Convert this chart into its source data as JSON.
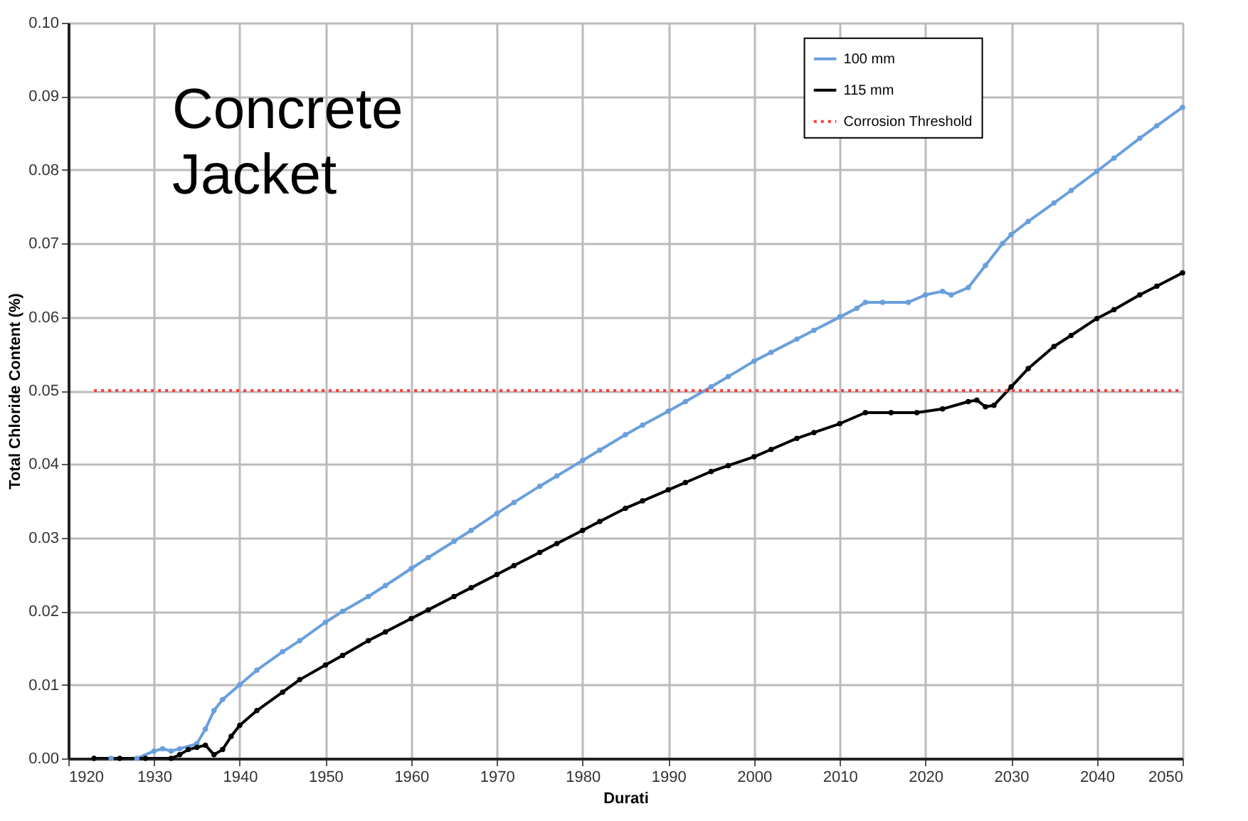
{
  "chart_data": {
    "type": "line",
    "xlabel": "Durati",
    "ylabel": "Total Chloride Content (%)",
    "annotations": [
      "Concrete Jacket"
    ],
    "xlim": [
      1920,
      2050
    ],
    "xticks": [
      1920,
      1930,
      1940,
      1950,
      1960,
      1970,
      1980,
      1990,
      2000,
      2010,
      2020,
      2030,
      2040,
      2050
    ],
    "ylim": [
      0,
      0.1
    ],
    "yticks": [
      {
        "value": 0,
        "label": "0.00"
      },
      {
        "value": 0.01,
        "label": "0.01"
      },
      {
        "value": 0.02,
        "label": "0.02"
      },
      {
        "value": 0.03,
        "label": "0.03"
      },
      {
        "value": 0.04,
        "label": "0.04"
      },
      {
        "value": 0.05,
        "label": "0.05"
      },
      {
        "value": 0.06,
        "label": "0.06"
      },
      {
        "value": 0.07,
        "label": "0.07"
      },
      {
        "value": 0.08,
        "label": "0.08"
      },
      {
        "value": 0.09,
        "label": "0.09"
      },
      {
        "value": 0.1,
        "label": "0.10"
      }
    ],
    "grid": true,
    "legend": "top right",
    "marker": "circle",
    "series": [
      {
        "name": "100 mm",
        "color": "#6a9fdc",
        "x": [
          1923,
          1925,
          1928,
          1930,
          1931,
          1932,
          1933,
          1935,
          1936,
          1937,
          1938,
          1940,
          1942,
          1945,
          1947,
          1950,
          1952,
          1955,
          1957,
          1960,
          1962,
          1965,
          1967,
          1970,
          1972,
          1975,
          1977,
          1980,
          1982,
          1985,
          1987,
          1990,
          1992,
          1995,
          1997,
          2000,
          2002,
          2005,
          2007,
          2010,
          2012,
          2013,
          2015,
          2018,
          2020,
          2022,
          2023,
          2025,
          2027,
          2029,
          2030,
          2032,
          2035,
          2037,
          2040,
          2042,
          2045,
          2047,
          2050
        ],
        "values": [
          0,
          0,
          0,
          0.001,
          0.0013,
          0.001,
          0.0013,
          0.002,
          0.004,
          0.0065,
          0.008,
          0.01,
          0.012,
          0.0145,
          0.016,
          0.0185,
          0.02,
          0.022,
          0.0235,
          0.0258,
          0.0273,
          0.0295,
          0.031,
          0.0333,
          0.0348,
          0.037,
          0.0384,
          0.0405,
          0.0419,
          0.044,
          0.0453,
          0.0472,
          0.0485,
          0.0505,
          0.0519,
          0.054,
          0.0552,
          0.057,
          0.0582,
          0.06,
          0.0612,
          0.062,
          0.062,
          0.062,
          0.063,
          0.0635,
          0.063,
          0.064,
          0.067,
          0.07,
          0.0712,
          0.073,
          0.0755,
          0.0772,
          0.0798,
          0.0816,
          0.0843,
          0.086,
          0.0885
        ]
      },
      {
        "name": "115 mm",
        "color": "#000000",
        "x": [
          1923,
          1926,
          1929,
          1932,
          1933,
          1934,
          1935,
          1936,
          1937,
          1938,
          1939,
          1940,
          1942,
          1945,
          1947,
          1950,
          1952,
          1955,
          1957,
          1960,
          1962,
          1965,
          1967,
          1970,
          1972,
          1975,
          1977,
          1980,
          1982,
          1985,
          1987,
          1990,
          1992,
          1995,
          1997,
          2000,
          2002,
          2005,
          2007,
          2010,
          2013,
          2016,
          2019,
          2022,
          2025,
          2026,
          2027,
          2028,
          2030,
          2032,
          2035,
          2037,
          2040,
          2042,
          2045,
          2047,
          2050
        ],
        "values": [
          0,
          0,
          0,
          0,
          0.0005,
          0.0012,
          0.0015,
          0.0018,
          0.0005,
          0.0012,
          0.003,
          0.0045,
          0.0065,
          0.009,
          0.0107,
          0.0127,
          0.014,
          0.016,
          0.0172,
          0.019,
          0.0202,
          0.022,
          0.0232,
          0.025,
          0.0262,
          0.028,
          0.0292,
          0.031,
          0.0322,
          0.034,
          0.035,
          0.0365,
          0.0375,
          0.039,
          0.0398,
          0.041,
          0.042,
          0.0435,
          0.0443,
          0.0455,
          0.047,
          0.047,
          0.047,
          0.0475,
          0.0485,
          0.0487,
          0.0478,
          0.048,
          0.0505,
          0.053,
          0.056,
          0.0575,
          0.0598,
          0.061,
          0.063,
          0.0642,
          0.066
        ]
      },
      {
        "name": "Corrosion Threshold",
        "color": "#ff3b3b",
        "line_style": "dotted",
        "marker": "none",
        "x": [
          1923,
          2050
        ],
        "values": [
          0.05,
          0.05
        ]
      }
    ]
  }
}
